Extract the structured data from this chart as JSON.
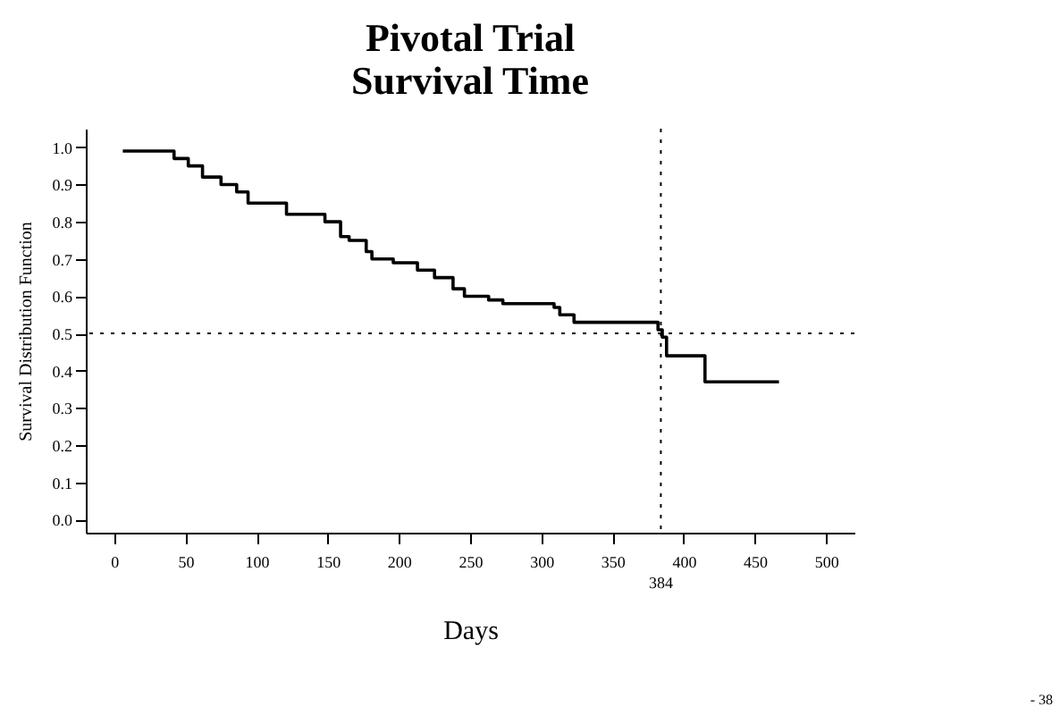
{
  "chart_data": {
    "type": "step",
    "title": "Pivotal Trial\nSurvival Time",
    "xlabel": "Days",
    "ylabel": "Survival Distribution Function",
    "x": [
      6,
      34,
      42,
      52,
      62,
      75,
      86,
      94,
      112,
      121,
      140,
      148,
      159,
      165,
      177,
      181,
      196,
      213,
      225,
      238,
      246,
      263,
      273,
      309,
      313,
      323,
      379,
      382,
      385,
      388,
      415,
      467
    ],
    "values": [
      0.99,
      0.99,
      0.97,
      0.95,
      0.92,
      0.9,
      0.88,
      0.85,
      0.85,
      0.82,
      0.82,
      0.8,
      0.76,
      0.75,
      0.72,
      0.7,
      0.69,
      0.67,
      0.65,
      0.62,
      0.6,
      0.59,
      0.58,
      0.57,
      0.55,
      0.53,
      0.53,
      0.51,
      0.49,
      0.44,
      0.37,
      0.37
    ],
    "color": "#000000",
    "line_style": "solid",
    "marker": "none",
    "xlim": [
      -20,
      520
    ],
    "xticks": [
      0,
      50,
      100,
      150,
      200,
      250,
      300,
      350,
      400,
      450,
      500
    ],
    "ylim": [
      -0.035,
      1.05
    ],
    "yticks": [
      {
        "value": 0,
        "label": "0.0"
      },
      {
        "value": 0.1,
        "label": "0.1"
      },
      {
        "value": 0.2,
        "label": "0.2"
      },
      {
        "value": 0.3,
        "label": "0.3"
      },
      {
        "value": 0.4,
        "label": "0.4"
      },
      {
        "value": 0.5,
        "label": "0.5"
      },
      {
        "value": 0.6,
        "label": "0.6"
      },
      {
        "value": 0.7,
        "label": "0.7"
      },
      {
        "value": 0.8,
        "label": "0.8"
      },
      {
        "value": 0.9,
        "label": "0.9"
      },
      {
        "value": 1,
        "label": "1.0"
      }
    ],
    "ref_lines": [
      {
        "axis": "y",
        "value": 0.5,
        "line_style": "dotted"
      },
      {
        "axis": "x",
        "value": 384,
        "label": "384",
        "line_style": "dotted"
      }
    ],
    "grid": false,
    "annotations": [
      "- 38"
    ]
  }
}
